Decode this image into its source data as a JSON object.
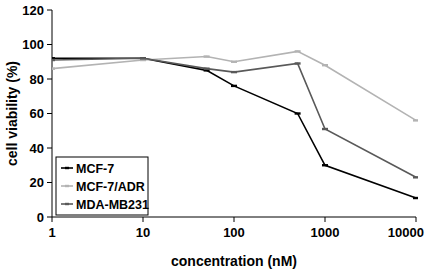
{
  "chart_data": {
    "type": "line",
    "xlabel": "concentration (nM)",
    "ylabel": "cell viability (%)",
    "x": [
      1,
      10,
      50,
      100,
      500,
      1000,
      10000
    ],
    "series": [
      {
        "name": "MCF-7",
        "color": "#000000",
        "marker": "dash",
        "values": [
          92,
          92,
          85,
          76,
          60,
          30,
          11
        ]
      },
      {
        "name": "MCF-7/ADR",
        "color": "#b3b3b3",
        "marker": "dash",
        "values": [
          86,
          91,
          93,
          90,
          96,
          88,
          56
        ]
      },
      {
        "name": "MDA-MB231",
        "color": "#595959",
        "marker": "dash",
        "values": [
          91,
          92,
          86,
          84,
          89,
          51,
          23
        ]
      }
    ],
    "log": "x",
    "xlim": [
      1,
      10000
    ],
    "xticks": [
      1,
      10,
      100,
      1000,
      10000
    ],
    "ylim": [
      0,
      120
    ],
    "yticks": [
      0,
      20,
      40,
      60,
      80,
      100,
      120
    ],
    "grid": false,
    "legend": "lower left"
  }
}
